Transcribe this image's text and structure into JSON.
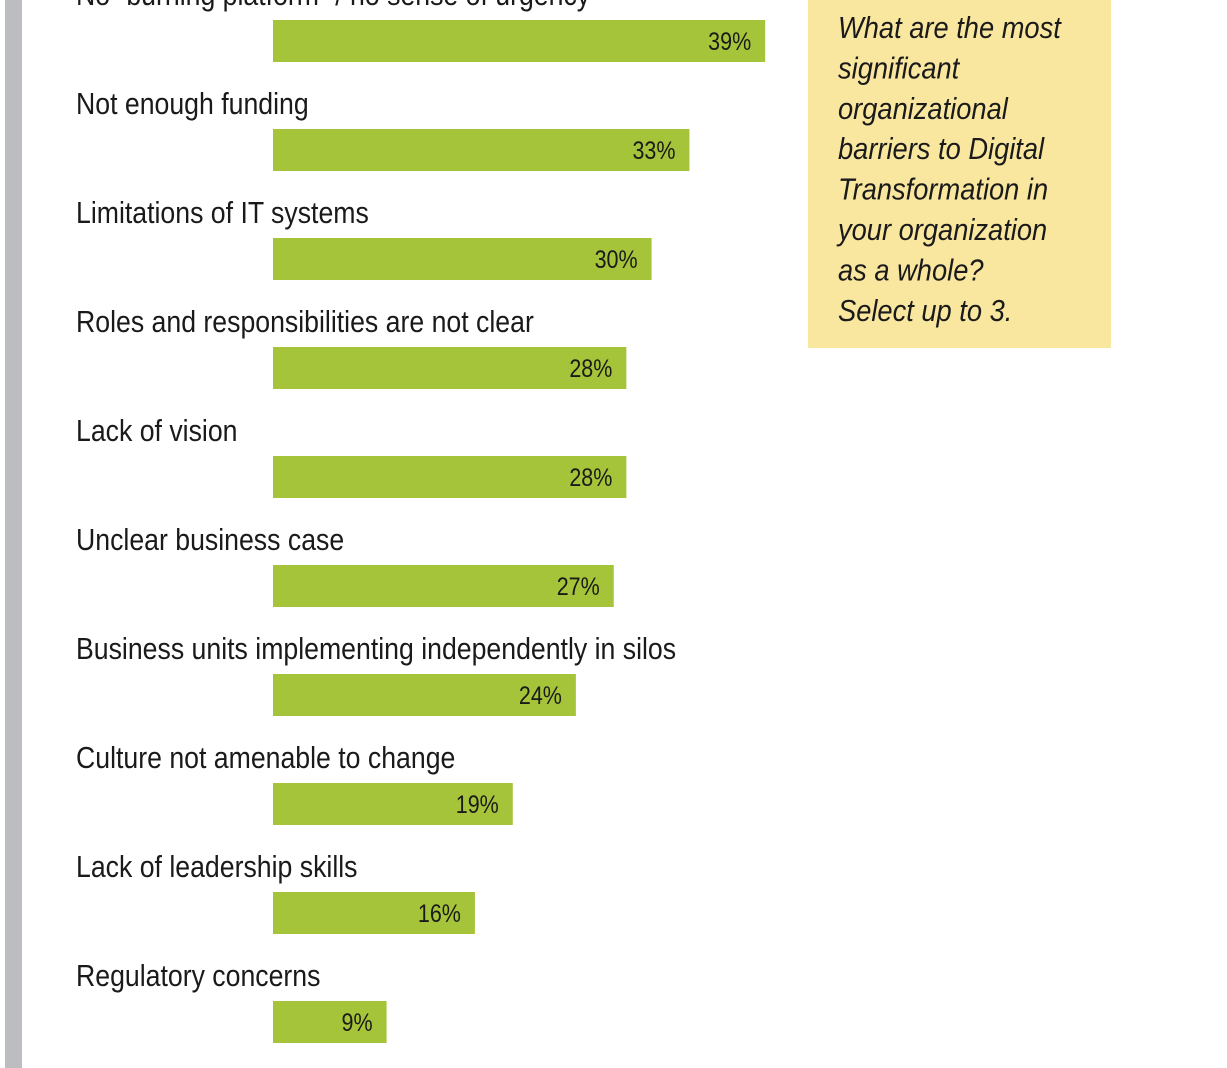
{
  "chart_data": {
    "type": "bar",
    "categories": [
      "No “burning platform” / no sense of urgency",
      "Not enough funding",
      "Limitations of IT systems",
      "Roles and responsibilities are not clear",
      "Lack of vision",
      "Unclear business case",
      "Business units implementing independently in silos",
      "Culture not amenable to change",
      "Lack of leadership skills",
      "Regulatory concerns"
    ],
    "values": [
      39,
      33,
      30,
      28,
      28,
      27,
      24,
      19,
      16,
      9
    ],
    "value_labels": [
      "39%",
      "33%",
      "30%",
      "28%",
      "28%",
      "27%",
      "24%",
      "19%",
      "16%",
      "9%"
    ],
    "color": "#a6c43a",
    "annotation": [
      "What are the most",
      "significant",
      "organizational",
      "barriers to Digital",
      "Transformation in",
      "your organization",
      "as a whole?",
      "Select up to 3."
    ]
  }
}
